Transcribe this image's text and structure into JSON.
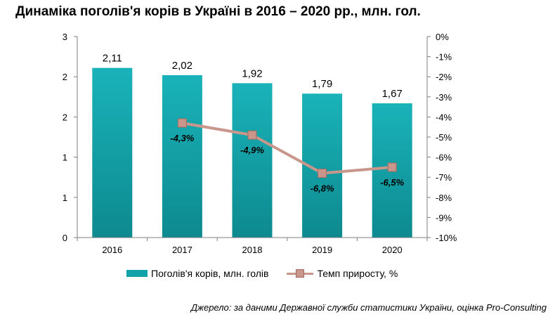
{
  "title": "Динаміка поголів'я корів в Україні в 2016 – 2020 рр., млн. гол.",
  "source": "Джерело: за даними Державної служби статистики України, оцінка Pro-Consulting",
  "colors": {
    "bar_top": "#19b3b9",
    "bar_bottom": "#0d8a8f",
    "line": "#c8968b",
    "marker": "#c8968b"
  },
  "chart_data": {
    "type": "bar",
    "categories": [
      "2016",
      "2017",
      "2018",
      "2019",
      "2020"
    ],
    "series": [
      {
        "name": "Поголів'я корів, млн. голів",
        "type": "bar",
        "axis": "left",
        "values": [
          2.11,
          2.02,
          1.92,
          1.79,
          1.67
        ],
        "labels": [
          "2,11",
          "2,02",
          "1,92",
          "1,79",
          "1,67"
        ]
      },
      {
        "name": "Темп приросту, %",
        "type": "line",
        "axis": "right",
        "values": [
          null,
          -4.3,
          -4.9,
          -6.8,
          -6.5
        ],
        "labels": [
          "",
          "-4,3%",
          "-4,9%",
          "-6,8%",
          "-6,5%"
        ]
      }
    ],
    "y_left": {
      "ylim": [
        0,
        2.5
      ],
      "ticks": [
        0,
        0.5,
        1,
        1.5,
        2,
        2.5
      ],
      "tick_labels": [
        "0",
        "1",
        "1",
        "2",
        "2",
        "3"
      ]
    },
    "y_right": {
      "ylim": [
        -10,
        0
      ],
      "ticks": [
        0,
        -1,
        -2,
        -3,
        -4,
        -5,
        -6,
        -7,
        -8,
        -9,
        -10
      ],
      "tick_labels": [
        "0%",
        "-1%",
        "-2%",
        "-3%",
        "-4%",
        "-5%",
        "-6%",
        "-7%",
        "-8%",
        "-9%",
        "-10%"
      ]
    },
    "grid": false,
    "legend": "bottom"
  }
}
